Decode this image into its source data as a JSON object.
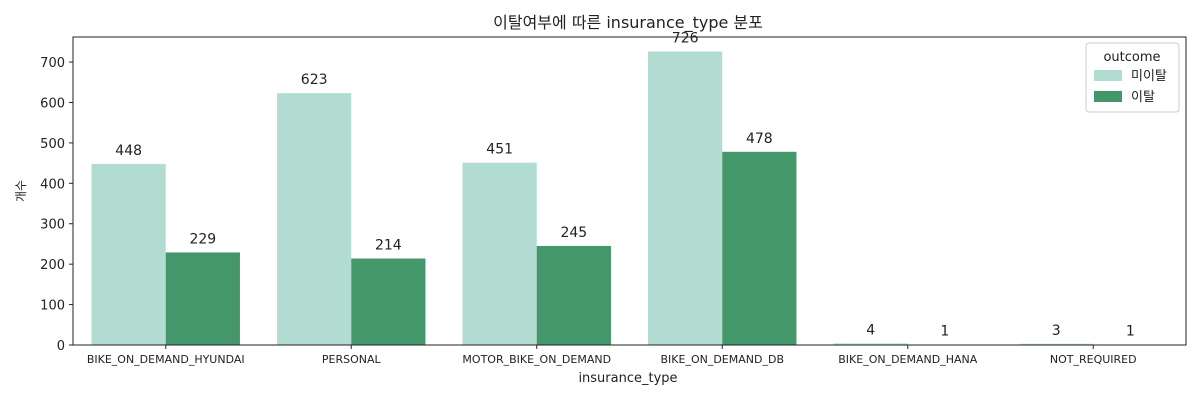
{
  "chart_data": {
    "type": "bar",
    "title": "이탈여부에 따른 insurance_type 분포",
    "xlabel": "insurance_type",
    "ylabel": "개수",
    "categories": [
      "BIKE_ON_DEMAND_HYUNDAI",
      "PERSONAL",
      "MOTOR_BIKE_ON_DEMAND",
      "BIKE_ON_DEMAND_DB",
      "BIKE_ON_DEMAND_HANA",
      "NOT_REQUIRED"
    ],
    "series": [
      {
        "name": "미이탈",
        "values": [
          448,
          623,
          451,
          726,
          4,
          3
        ],
        "color": "#b2dbd1"
      },
      {
        "name": "이탈",
        "values": [
          229,
          214,
          245,
          478,
          1,
          1
        ],
        "color": "#43976a"
      }
    ],
    "ylim": [
      0,
      762
    ],
    "yticks": [
      0,
      100,
      200,
      300,
      400,
      500,
      600,
      700
    ],
    "legend": {
      "title": "outcome",
      "placement": "top-right"
    },
    "grid": false
  }
}
